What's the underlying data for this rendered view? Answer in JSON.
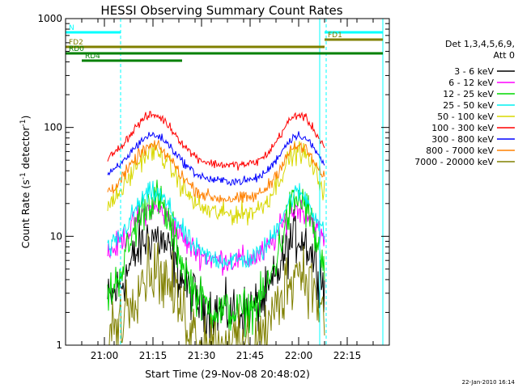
{
  "chart_data": {
    "type": "line",
    "title": "HESSI Observing Summary Count Rates",
    "xlabel": "Start Time (29-Nov-08 20:48:02)",
    "ylabel_parts": [
      "Count Rate (s",
      "-1",
      " detector",
      "-1",
      ")"
    ],
    "ylabel": "Count Rate (s-1 detector-1)",
    "y_scale": "log",
    "ylim": [
      1,
      1000
    ],
    "y_ticks": [
      {
        "value": 1,
        "label": "1"
      },
      {
        "value": 10,
        "label": "10"
      },
      {
        "value": 100,
        "label": "100"
      },
      {
        "value": 1000,
        "label": "1000"
      }
    ],
    "x_unit": "minutes since 20:48:02",
    "xlim": [
      0,
      100
    ],
    "x_ticks": [
      {
        "value": 12,
        "label": "21:00"
      },
      {
        "value": 27,
        "label": "21:15"
      },
      {
        "value": 42,
        "label": "21:30"
      },
      {
        "value": 57,
        "label": "21:45"
      },
      {
        "value": 72,
        "label": "22:00"
      },
      {
        "value": 87,
        "label": "22:15"
      }
    ],
    "grid": false,
    "legend_header": [
      "Det 1,3,4,5,6,9,",
      "Att 0"
    ],
    "legend_placement": "right",
    "series": [
      {
        "name": "3 - 6 keV",
        "color": "#000000",
        "low": 2,
        "high": 10,
        "noise": 0.12
      },
      {
        "name": "6 - 12 keV",
        "color": "#ff00ff",
        "low": 6,
        "high": 18,
        "noise": 0.06
      },
      {
        "name": "12 - 25 keV",
        "color": "#00d800",
        "low": 2,
        "high": 22,
        "noise": 0.1
      },
      {
        "name": "25 - 50 keV",
        "color": "#00f0f0",
        "low": 6,
        "high": 25,
        "noise": 0.05
      },
      {
        "name": "50 - 100 keV",
        "color": "#d8d800",
        "low": 16,
        "high": 60,
        "noise": 0.05
      },
      {
        "name": "100 - 300 keV",
        "color": "#ff0000",
        "low": 45,
        "high": 130,
        "noise": 0.02
      },
      {
        "name": "300 - 800 keV",
        "color": "#0000ff",
        "low": 32,
        "high": 85,
        "noise": 0.02
      },
      {
        "name": "800 - 7000 keV",
        "color": "#ff8000",
        "low": 22,
        "high": 67,
        "noise": 0.03
      },
      {
        "name": "7000 - 20000 keV",
        "color": "#808000",
        "low": 1,
        "high": 5,
        "noise": 0.15
      }
    ],
    "flags": [
      {
        "label": "N",
        "color": "#00ffff",
        "segments": [
          [
            0,
            17
          ],
          [
            80,
            98
          ]
        ]
      },
      {
        "label": "FD1",
        "color": "#808000",
        "segments": [
          [
            80,
            98
          ]
        ]
      },
      {
        "label": "FD2",
        "color": "#808000",
        "segments": [
          [
            0,
            80
          ]
        ]
      },
      {
        "label": "RD0",
        "color": "#008000",
        "segments": [
          [
            0,
            35
          ],
          [
            35,
            98
          ]
        ]
      },
      {
        "label": "RD4",
        "color": "#008000",
        "segments": [
          [
            5,
            36
          ]
        ]
      }
    ],
    "boundaries": {
      "solid": [
        0,
        78.5,
        98
      ],
      "dashed": [
        17,
        80.5,
        98
      ]
    },
    "footer_date": "22-Jan-2010 16:14"
  }
}
